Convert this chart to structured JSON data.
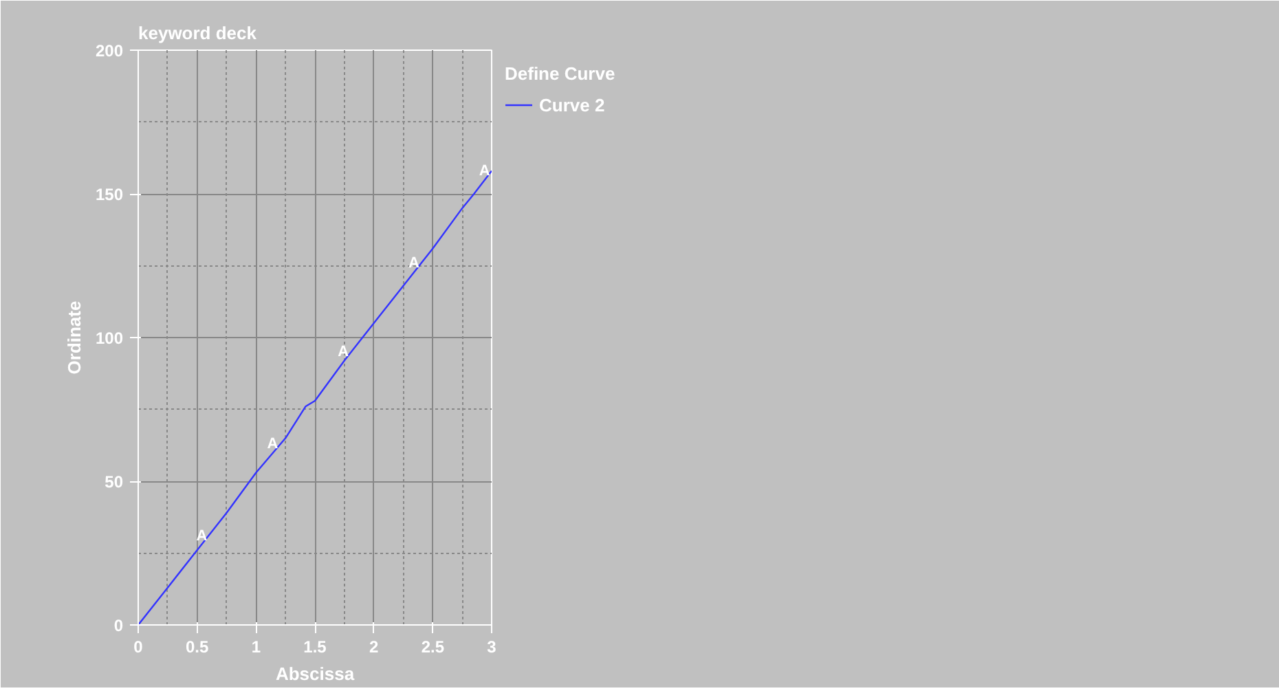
{
  "chart_data": {
    "type": "line",
    "title": "keyword deck",
    "xlabel": "Abscissa",
    "ylabel": "Ordinate",
    "legend_title": "Define Curve",
    "legend": "right",
    "grid": true,
    "xlim": [
      0,
      3
    ],
    "ylim": [
      0,
      200
    ],
    "xticks": [
      0,
      0.5,
      1,
      1.5,
      2,
      2.5,
      3
    ],
    "yticks": [
      0,
      50,
      100,
      150,
      200
    ],
    "x": [
      0,
      0.25,
      0.5,
      0.75,
      1,
      1.25,
      1.42,
      1.5,
      1.75,
      2,
      2.25,
      2.5,
      2.75,
      2.85,
      3
    ],
    "series": [
      {
        "name": "Curve 2",
        "color": "#3333ff",
        "values": [
          0,
          13,
          26,
          39,
          53,
          65,
          76,
          78,
          92,
          105,
          118,
          131,
          145,
          150,
          158
        ]
      }
    ],
    "annotations": [
      {
        "text": "A",
        "x": 0.54,
        "y": 28
      },
      {
        "text": "A",
        "x": 1.14,
        "y": 60
      },
      {
        "text": "A",
        "x": 1.74,
        "y": 92
      },
      {
        "text": "A",
        "x": 2.34,
        "y": 123
      },
      {
        "text": "A",
        "x": 2.94,
        "y": 155
      }
    ]
  }
}
